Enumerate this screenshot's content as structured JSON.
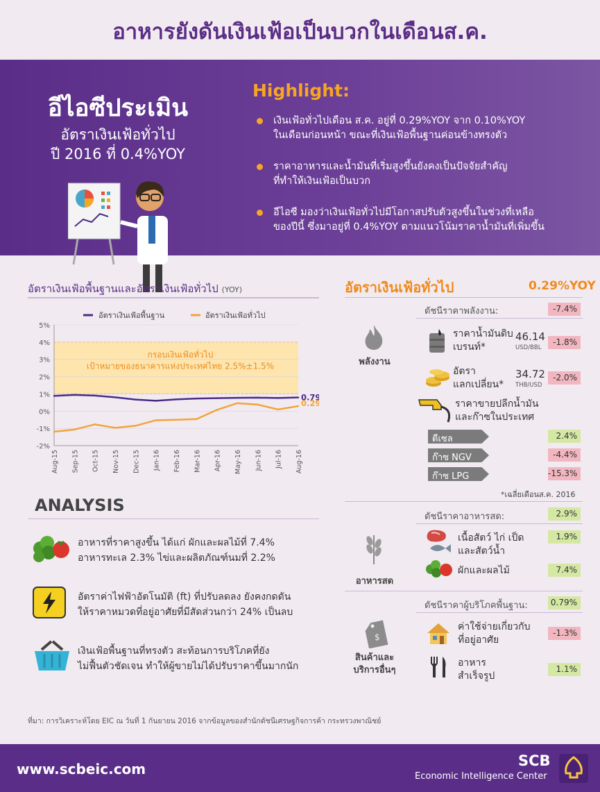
{
  "page_title": "อาหารยังดันเงินเฟ้อเป็นบวกในเดือนส.ค.",
  "hero": {
    "title": "อีไอซีประเมิน",
    "subtitle_line1": "อัตราเงินเฟ้อทั่วไป",
    "subtitle_line2": "ปี 2016 ที่ 0.4%YOY"
  },
  "highlight": {
    "title": "Highlight:",
    "items": [
      {
        "line1": "เงินเฟ้อทั่วไปเดือน ส.ค. อยู่ที่ 0.29%YOY จาก 0.10%YOY",
        "line2": "ในเดือนก่อนหน้า ขณะที่เงินเฟ้อพื้นฐานค่อนข้างทรงตัว"
      },
      {
        "line1": "ราคาอาหารและน้ำมันที่เริ่มสูงขึ้นยังคงเป็นปัจจัยสำคัญ",
        "line2": "ที่ทำให้เงินเฟ้อเป็นบวก"
      },
      {
        "line1": "อีไอซี มองว่าเงินเฟ้อทั่วไปมีโอกาสปรับตัวสูงขึ้นในช่วงที่เหลือ",
        "line2": "ของปีนี้ ซึ่งมาอยู่ที่ 0.4%YOY ตามแนวโน้มราคาน้ำมันที่เพิ่มขึ้น"
      }
    ]
  },
  "chart_section": {
    "title": "อัตราเงินเฟ้อพื้นฐานและอัตราเงินเฟ้อทั่วไป",
    "title_unit": "(YOY)"
  },
  "chart_data": {
    "type": "line",
    "x": [
      "Aug-15",
      "Sep-15",
      "Oct-15",
      "Nov-15",
      "Dec-15",
      "Jan-16",
      "Feb-16",
      "Mar-16",
      "Apr-16",
      "May-16",
      "Jun-16",
      "Jul-16",
      "Aug-16"
    ],
    "series": [
      {
        "name": "อัตราเงินเฟ้อพื้นฐาน",
        "color": "#4b2a83",
        "values": [
          0.88,
          0.94,
          0.9,
          0.8,
          0.67,
          0.6,
          0.68,
          0.73,
          0.75,
          0.77,
          0.78,
          0.76,
          0.79
        ]
      },
      {
        "name": "อัตราเงินเฟ้อทั่วไป",
        "color": "#f2a33a",
        "values": [
          -1.19,
          -1.07,
          -0.77,
          -0.97,
          -0.85,
          -0.53,
          -0.5,
          -0.46,
          0.07,
          0.46,
          0.38,
          0.1,
          0.29
        ]
      }
    ],
    "yticks": [
      "5%",
      "4%",
      "3%",
      "2%",
      "1%",
      "0%",
      "-1%",
      "-2%"
    ],
    "ylim": [
      -2,
      5
    ],
    "band": {
      "from": 1,
      "to": 4,
      "line1": "กรอบเงินเฟ้อทั่วไป",
      "line2": "เป้าหมายของธนาคารแห่งประเทศไทย 2.5%±1.5%"
    },
    "end_labels": [
      "0.79%",
      "0.29%"
    ],
    "legend_position": "top"
  },
  "analysis": {
    "title": "ANALYSIS",
    "items": [
      {
        "icon": "vegetables-icon",
        "line1": "อาหารที่ราคาสูงขึ้น ได้แก่ ผักและผลไม้ที่ 7.4%",
        "line2": "อาหารทะเล 2.3% ไข่และผลิตภัณฑ์นมที่ 2.2%"
      },
      {
        "icon": "electricity-icon",
        "line1": "อัตราค่าไฟฟ้าอัตโนมัติ (ft) ที่ปรับลดลง ยังคงกดดัน",
        "line2": "ให้ราคาหมวดที่อยู่อาศัยที่มีสัดส่วนกว่า 24% เป็นลบ"
      },
      {
        "icon": "shopping-basket-icon",
        "line1": "เงินเฟ้อพื้นฐานที่ทรงตัว สะท้อนการบริโภคที่ยัง",
        "line2": "ไม่ฟื้นตัวชัดเจน ทำให้ผู้ขายไม่ได้ปรับราคาขึ้นมากนัก"
      }
    ]
  },
  "right_panel": {
    "title": "อัตราเงินเฟ้อทั่วไป",
    "title_value": "0.29%YOY",
    "energy": {
      "index_label": "ดัชนีราคาพลังงาน:",
      "index_value": "-7.4%",
      "category": "พลังงาน",
      "crude": {
        "line1": "ราคาน้ำมันดิบ",
        "line2": "เบรนท์*",
        "num": "46.14",
        "unit": "USD/BBL",
        "change": "-1.8%"
      },
      "fx": {
        "line1": "อัตรา",
        "line2": "แลกเปลี่ยน*",
        "num": "34.72",
        "unit": "THB/USD",
        "change": "-2.0%"
      },
      "retail": {
        "line1": "ราคาขายปลีกน้ำมัน",
        "line2": "และก๊าซในประเทศ"
      },
      "fuels": [
        {
          "name": "ดีเซล",
          "value": "2.4%",
          "sign": "pos"
        },
        {
          "name": "ก๊าซ NGV",
          "value": "-4.4%",
          "sign": "neg"
        },
        {
          "name": "ก๊าซ LPG",
          "value": "-15.3%",
          "sign": "neg"
        }
      ],
      "note": "*เฉลี่ยเดือนส.ค. 2016"
    },
    "food": {
      "index_label": "ดัชนีราคาอาหารสด:",
      "index_value": "2.9%",
      "category": "อาหารสด",
      "meat": {
        "line1": "เนื้อสัตว์ ไก่ เป็ด",
        "line2": "และสัตว์น้ำ",
        "value": "1.9%"
      },
      "veg": {
        "line1": "ผักและผลไม้",
        "value": "7.4%"
      }
    },
    "core": {
      "index_label": "ดัชนีราคาผู้บริโภคพื้นฐาน:",
      "index_value": "0.79%",
      "category_line1": "สินค้าและ",
      "category_line2": "บริการอื่นๆ",
      "housing": {
        "line1": "ค่าใช้จ่ายเกี่ยวกับ",
        "line2": "ที่อยู่อาศัย",
        "value": "-1.3%"
      },
      "meals": {
        "line1": "อาหาร",
        "line2": "สำเร็จรูป",
        "value": "1.1%"
      }
    }
  },
  "footnote": "ที่มา: การวิเคราะห์โดย EIC ณ วันที่ 1 กันยายน 2016 จากข้อมูลของสำนักดัชนีเศรษฐกิจการค้า กระทรวงพาณิชย์",
  "footer": {
    "url": "www.scbeic.com",
    "brand": "SCB",
    "brand_sub": "Economic Intelligence Center"
  },
  "colors": {
    "purple": "#5a2e88",
    "orange": "#f08a1c",
    "neg": "#f2b6c0",
    "pos": "#d4e8a4"
  }
}
